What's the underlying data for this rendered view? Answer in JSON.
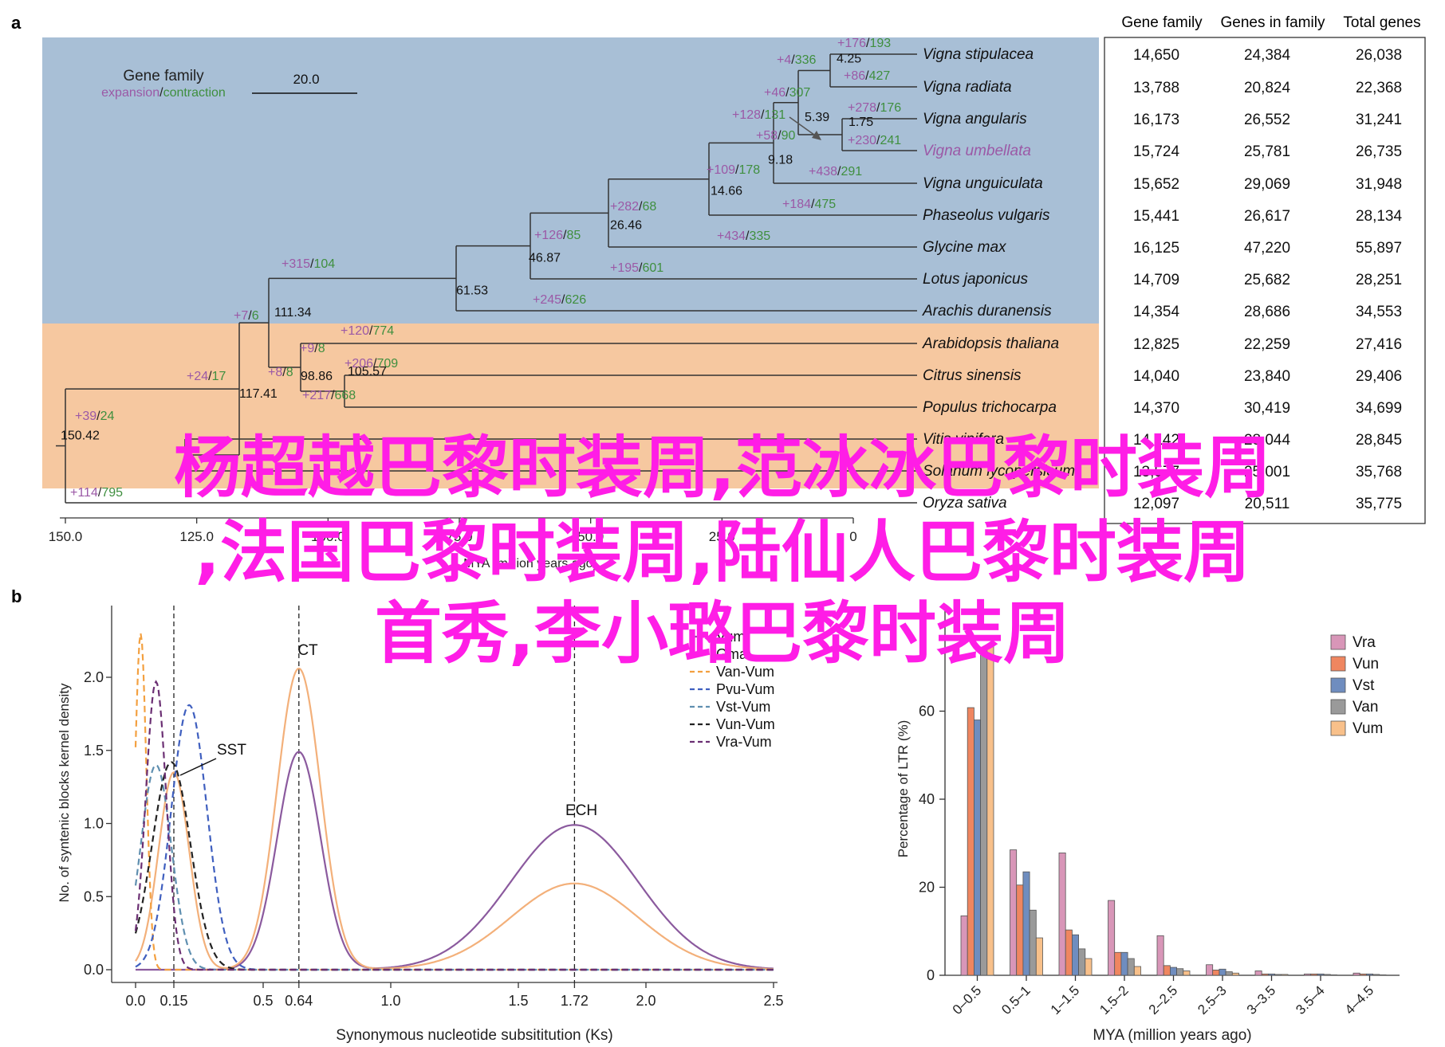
{
  "panel_a": {
    "label": "a",
    "legend": {
      "title": "Gene family",
      "expansion": "expansion",
      "slash": "/",
      "contraction": "contraction"
    },
    "scale_label": "20.0",
    "axis": {
      "ticks": [
        "150.0",
        "125.0",
        "100.0",
        "75.0",
        "50.0",
        "25.0",
        "0"
      ],
      "label": "MYA (million years ago)"
    },
    "clade_colors": {
      "fabaceae": "#a8bfd6",
      "other_dicots": "#f6c8a0",
      "expansion": "#9b59a6",
      "contraction": "#3f8f3f"
    },
    "species": [
      "Vigna stipulacea",
      "Vigna radiata",
      "Vigna angularis",
      "Vigna umbellata",
      "Vigna unguiculata",
      "Phaseolus vulgaris",
      "Glycine max",
      "Lotus japonicus",
      "Arachis duranensis",
      "Arabidopsis thaliana",
      "Citrus sinensis",
      "Populus trichocarpa",
      "Vitis vinifera",
      "Solanum lycopersicum",
      "Oryza sativa"
    ],
    "node_ages": [
      "4.25",
      "5.39",
      "1.75",
      "9.18",
      "14.66",
      "26.46",
      "46.87",
      "61.53",
      "111.34",
      "98.86",
      "105.57",
      "117.41",
      "150.42"
    ],
    "branch_changes": [
      {
        "plus": "+176",
        "minus": "-193"
      },
      {
        "plus": "+86",
        "minus": "-427"
      },
      {
        "plus": "+278",
        "minus": "-176"
      },
      {
        "plus": "+230",
        "minus": "-241"
      },
      {
        "plus": "+438",
        "minus": "-291"
      },
      {
        "plus": "+184",
        "minus": "-475"
      },
      {
        "plus": "+434",
        "minus": "-335"
      },
      {
        "plus": "+195",
        "minus": "601"
      },
      {
        "plus": "+245",
        "minus": "-626"
      },
      {
        "plus": "+120",
        "minus": "-774"
      },
      {
        "plus": "+206",
        "minus": "-709"
      },
      {
        "plus": "+217",
        "minus": "-668"
      },
      {
        "plus": "+114",
        "minus": "795"
      },
      {
        "plus": "+4",
        "minus": "-336"
      },
      {
        "plus": "+46",
        "minus": "-307"
      },
      {
        "plus": "+128",
        "minus": "-131"
      },
      {
        "plus": "+58",
        "minus": "-90"
      },
      {
        "plus": "+109",
        "minus": "-178"
      },
      {
        "plus": "+282",
        "minus": "-68"
      },
      {
        "plus": "+126",
        "minus": "-85"
      },
      {
        "plus": "+315",
        "minus": "-104"
      },
      {
        "plus": "+7",
        "minus": "-6"
      },
      {
        "plus": "+24",
        "minus": "-17"
      },
      {
        "plus": "+9",
        "minus": "-8"
      },
      {
        "plus": "+8",
        "minus": "-8"
      },
      {
        "plus": "+39",
        "minus": "24"
      }
    ],
    "table": {
      "headers": [
        "Gene family",
        "Genes in family",
        "Total genes"
      ],
      "rows": [
        [
          "14,650",
          "24,384",
          "26,038"
        ],
        [
          "13,788",
          "20,824",
          "22,368"
        ],
        [
          "16,173",
          "26,552",
          "31,241"
        ],
        [
          "15,724",
          "25,781",
          "26,735"
        ],
        [
          "15,652",
          "29,069",
          "31,948"
        ],
        [
          "15,441",
          "26,617",
          "28,134"
        ],
        [
          "16,125",
          "47,220",
          "55,897"
        ],
        [
          "14,709",
          "25,682",
          "28,251"
        ],
        [
          "14,354",
          "28,686",
          "34,553"
        ],
        [
          "12,825",
          "22,259",
          "27,416"
        ],
        [
          "14,040",
          "23,840",
          "29,406"
        ],
        [
          "14,370",
          "30,419",
          "34,699"
        ],
        [
          "14,142",
          "28,044",
          "28,845"
        ],
        [
          "13,577",
          "25,001",
          "35,768"
        ],
        [
          "12,097",
          "20,511",
          "35,775"
        ]
      ]
    }
  },
  "panel_b": {
    "label": "b",
    "annotations": {
      "sst": "SST",
      "ch": "CT",
      "ech": "ECH"
    },
    "legend": [
      "Vum",
      "Gma",
      "Van-Vum",
      "Pvu-Vum",
      "Vst-Vum",
      "Vun-Vum",
      "Vra-Vum"
    ]
  },
  "panel_c": {
    "legend": [
      "Vra",
      "Vun",
      "Vst",
      "Van",
      "Vum"
    ]
  },
  "chart_data": [
    {
      "type": "line",
      "title": "",
      "xlabel": "Synonymous nucleotide subsititution (Ks)",
      "ylabel": "No. of syntenic blocks kernel density",
      "xlim": [
        0.0,
        2.5
      ],
      "ylim": [
        0.0,
        2.4
      ],
      "xticks": [
        "0.0",
        "0.15",
        "0.5",
        "0.64",
        "1.0",
        "1.5",
        "1.72",
        "2.0",
        "2.5"
      ],
      "xtick_values": [
        0.0,
        0.15,
        0.5,
        0.64,
        1.0,
        1.5,
        1.72,
        2.0,
        2.5
      ],
      "yticks": [
        "0.0",
        "0.5",
        "1.0",
        "1.5",
        "2.0"
      ],
      "peak_markers": [
        0.15,
        0.64,
        1.72
      ],
      "series": [
        {
          "name": "Vum",
          "color": "#8b5a9e",
          "dash": false,
          "peaks": [
            {
              "mu": 0.64,
              "sigma": 0.085,
              "amp": 1.49
            },
            {
              "mu": 1.72,
              "sigma": 0.25,
              "amp": 0.99
            }
          ]
        },
        {
          "name": "Gma",
          "color": "#f3b07a",
          "dash": false,
          "peaks": [
            {
              "mu": 0.15,
              "sigma": 0.06,
              "amp": 1.35
            },
            {
              "mu": 0.64,
              "sigma": 0.085,
              "amp": 2.06
            },
            {
              "mu": 1.72,
              "sigma": 0.25,
              "amp": 0.59
            }
          ]
        },
        {
          "name": "Van-Vum",
          "color": "#f3a040",
          "dash": true,
          "peaks": [
            {
              "mu": 0.02,
              "sigma": 0.022,
              "amp": 2.3
            }
          ]
        },
        {
          "name": "Pvu-Vum",
          "color": "#3f5fbf",
          "dash": true,
          "peaks": [
            {
              "mu": 0.21,
              "sigma": 0.07,
              "amp": 1.81
            }
          ]
        },
        {
          "name": "Vst-Vum",
          "color": "#5f8fb0",
          "dash": true,
          "peaks": [
            {
              "mu": 0.08,
              "sigma": 0.06,
              "amp": 1.4
            }
          ]
        },
        {
          "name": "Vun-Vum",
          "color": "#222222",
          "dash": true,
          "peaks": [
            {
              "mu": 0.14,
              "sigma": 0.075,
              "amp": 1.42
            }
          ]
        },
        {
          "name": "Vra-Vum",
          "color": "#6b2f73",
          "dash": true,
          "peaks": [
            {
              "mu": 0.08,
              "sigma": 0.04,
              "amp": 1.97
            }
          ]
        }
      ]
    },
    {
      "type": "bar",
      "title": "",
      "xlabel": "MYA (million years ago)",
      "ylabel": "Percentage of LTR (%)",
      "ylim": [
        0,
        80
      ],
      "yticks": [
        "0",
        "20",
        "40",
        "60"
      ],
      "categories": [
        "0–0.5",
        "0.5–1",
        "1–1.5",
        "1.5–2",
        "2–2.5",
        "2.5–3",
        "3–3.5",
        "3.5–4",
        "4–4.5"
      ],
      "series": [
        {
          "name": "Vra",
          "color": "#d896b8",
          "values": [
            13.5,
            28.5,
            27.8,
            17.0,
            9.0,
            2.4,
            1.0,
            0.3,
            0.5
          ]
        },
        {
          "name": "Vun",
          "color": "#ef8660",
          "values": [
            60.8,
            20.5,
            10.3,
            5.2,
            2.2,
            1.2,
            0.3,
            0.3,
            0.3
          ]
        },
        {
          "name": "Vst",
          "color": "#6f8dbf",
          "values": [
            58.0,
            23.5,
            9.2,
            5.2,
            1.8,
            1.4,
            0.3,
            0.3,
            0.3
          ]
        },
        {
          "name": "Van",
          "color": "#9a9a9a",
          "values": [
            73.6,
            14.8,
            6.0,
            3.8,
            1.5,
            0.8,
            0.2,
            0.2,
            0.2
          ]
        },
        {
          "name": "Vum",
          "color": "#f8c08a",
          "values": [
            75.0,
            8.5,
            3.8,
            2.0,
            1.0,
            0.5,
            0.2,
            0.1,
            0.1
          ]
        }
      ]
    }
  ],
  "overlay": {
    "line1": "杨超越巴黎时装周,范冰冰巴黎时装周",
    "line2": ",法国巴黎时装周,陆仙人巴黎时装周",
    "line3": "首秀,李小璐巴黎时装周",
    "color": "#ff1de6"
  }
}
